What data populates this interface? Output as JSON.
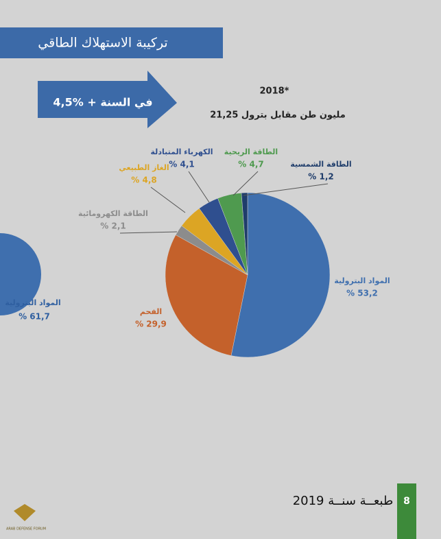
{
  "header": {
    "title": "تركيبة الاستهلاك الطاقي",
    "growth": "4,5% + في السنة"
  },
  "chart_data": {
    "type": "pie",
    "title": "2018*",
    "subtitle": "21,25 مليون طن مقابل بترول",
    "categories": [
      "المواد البترولية",
      "الفحم",
      "الطاقة الكهرومائية",
      "الغاز الطبيعي",
      "الكهرباء المتبادلة",
      "الطاقة الريحية",
      "الطاقة الشمسية"
    ],
    "values": [
      53.2,
      29.9,
      2.1,
      4.8,
      4.1,
      4.7,
      1.2
    ],
    "value_labels": [
      "% 53,2",
      "% 29,9",
      "% 2,1",
      "% 4,8",
      "% 4,1",
      "% 4,7",
      "% 1,2"
    ],
    "colors": [
      "#3f6fae",
      "#c4612b",
      "#8c8c8c",
      "#dca524",
      "#2f4f8f",
      "#4f9a4f",
      "#1f3d6b"
    ]
  },
  "left_fragment": {
    "label": "المواد البترولية",
    "value_label": "% 61,7"
  },
  "footer": {
    "edition": "طبعــة سنــة 2019",
    "page": "8",
    "logo": "ARAB DEFENSE FORUM"
  }
}
